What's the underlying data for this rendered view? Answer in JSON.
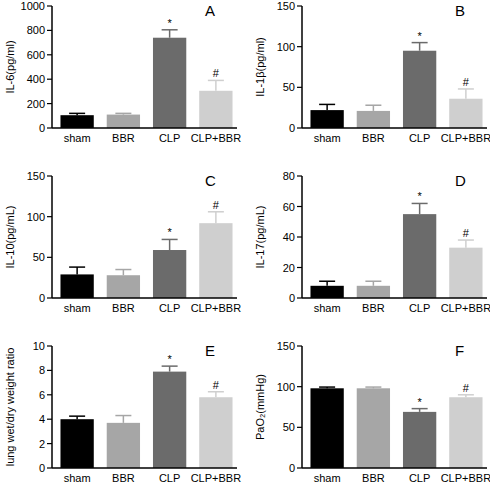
{
  "chart_data": [
    {
      "type": "bar",
      "panel": "A",
      "y_label": "IL-6(pg/ml)",
      "categories": [
        "sham",
        "BBR",
        "CLP",
        "CLP+BBR"
      ],
      "values": [
        105,
        110,
        740,
        305
      ],
      "errors": [
        15,
        10,
        65,
        85
      ],
      "annotations": [
        null,
        null,
        "*",
        "#"
      ],
      "colors": [
        "#000000",
        "#a6a6a6",
        "#6b6b6b",
        "#cfcfcf"
      ],
      "ylim": [
        0,
        1000
      ],
      "yticks": [
        0,
        200,
        400,
        600,
        800,
        1000
      ]
    },
    {
      "type": "bar",
      "panel": "B",
      "y_label": "IL-1β(pg/ml)",
      "categories": [
        "sham",
        "BBR",
        "CLP",
        "CLP+BBR"
      ],
      "values": [
        22,
        21,
        95,
        36
      ],
      "errors": [
        7,
        7,
        10,
        12
      ],
      "annotations": [
        null,
        null,
        "*",
        "#"
      ],
      "colors": [
        "#000000",
        "#a6a6a6",
        "#6b6b6b",
        "#cfcfcf"
      ],
      "ylim": [
        0,
        150
      ],
      "yticks": [
        0,
        50,
        100,
        150
      ]
    },
    {
      "type": "bar",
      "panel": "C",
      "y_label": "IL-10(pg/mL)",
      "categories": [
        "sham",
        "BBR",
        "CLP",
        "CLP+BBR"
      ],
      "values": [
        29,
        28,
        59,
        92
      ],
      "errors": [
        9,
        7,
        13,
        14
      ],
      "annotations": [
        null,
        null,
        "*",
        "#"
      ],
      "colors": [
        "#000000",
        "#a6a6a6",
        "#6b6b6b",
        "#cfcfcf"
      ],
      "ylim": [
        0,
        150
      ],
      "yticks": [
        0,
        50,
        100,
        150
      ]
    },
    {
      "type": "bar",
      "panel": "D",
      "y_label": "IL-17(pg/mL)",
      "categories": [
        "sham",
        "BBR",
        "CLP",
        "CLP+BBR"
      ],
      "values": [
        8,
        8,
        55,
        33
      ],
      "errors": [
        3,
        3,
        7,
        5
      ],
      "annotations": [
        null,
        null,
        "*",
        "#"
      ],
      "colors": [
        "#000000",
        "#a6a6a6",
        "#6b6b6b",
        "#cfcfcf"
      ],
      "ylim": [
        0,
        80
      ],
      "yticks": [
        0,
        20,
        40,
        60,
        80
      ]
    },
    {
      "type": "bar",
      "panel": "E",
      "y_label": "lung wet/dry weight ratio",
      "categories": [
        "sham",
        "BBR",
        "CLP",
        "CLP+BBR"
      ],
      "values": [
        4.0,
        3.7,
        7.9,
        5.8
      ],
      "errors": [
        0.25,
        0.6,
        0.45,
        0.45
      ],
      "annotations": [
        null,
        null,
        "*",
        "#"
      ],
      "colors": [
        "#000000",
        "#a6a6a6",
        "#6b6b6b",
        "#cfcfcf"
      ],
      "ylim": [
        0,
        10
      ],
      "yticks": [
        0,
        2,
        4,
        6,
        8,
        10
      ]
    },
    {
      "type": "bar",
      "panel": "F",
      "y_label": "PaO₂(mmHg)",
      "categories": [
        "sham",
        "BBR",
        "CLP",
        "CLP+BBR"
      ],
      "values": [
        98,
        98,
        69,
        87
      ],
      "errors": [
        1.5,
        1.5,
        4,
        3
      ],
      "annotations": [
        null,
        null,
        "*",
        "#"
      ],
      "colors": [
        "#000000",
        "#a6a6a6",
        "#6b6b6b",
        "#cfcfcf"
      ],
      "ylim": [
        0,
        150
      ],
      "yticks": [
        0,
        50,
        100,
        150
      ]
    }
  ]
}
